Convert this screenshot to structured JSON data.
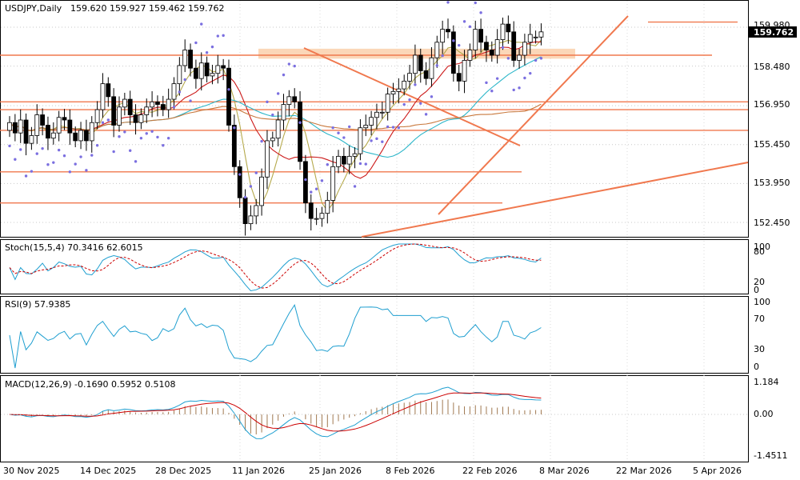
{
  "chart_data": {
    "type": "candlestick",
    "symbol": "USDJPY",
    "timeframe": "Daily",
    "ohlc_header": "159.620 159.927 159.462 159.762",
    "last_price": "159.762",
    "price_axis_labels": [
      "159.980",
      "158.480",
      "156.950",
      "155.450",
      "153.950",
      "152.450"
    ],
    "price_levels": [
      159.98,
      158.48,
      156.95,
      155.45,
      153.95,
      152.45
    ],
    "date_labels": [
      "30 Nov 2025",
      "14 Dec 2025",
      "28 Dec 2025",
      "11 Jan 2026",
      "25 Jan 2026",
      "8 Feb 2026",
      "22 Feb 2026",
      "8 Mar 2026",
      "22 Mar 2026",
      "5 Apr 2026"
    ],
    "stoch": {
      "label": "Stoch(15,5,4) 70.3416 62.6015",
      "levels": [
        "100",
        "80",
        "20",
        "0"
      ]
    },
    "rsi": {
      "label": "RSI(9) 57.9385",
      "levels": [
        "100",
        "70",
        "30",
        "0"
      ]
    },
    "macd": {
      "label": "MACD(12,26,9) -0.1690 0.5952 0.5108",
      "levels": [
        "1.184",
        "0.00",
        "-1.4511"
      ]
    },
    "closes": [
      156.3,
      155.9,
      156.4,
      155.5,
      155.8,
      156.6,
      156.2,
      155.7,
      155.9,
      156.5,
      156.4,
      155.9,
      155.6,
      156.0,
      155.6,
      156.3,
      156.8,
      157.8,
      157.3,
      156.2,
      156.9,
      157.2,
      156.6,
      156.3,
      156.6,
      156.9,
      157.1,
      157.0,
      156.8,
      157.2,
      157.8,
      158.5,
      159.1,
      158.4,
      158.0,
      158.6,
      158.1,
      158.2,
      158.5,
      158.4,
      156.2,
      154.6,
      153.4,
      152.4,
      152.7,
      153.1,
      154.2,
      155.6,
      155.7,
      156.4,
      157.0,
      157.3,
      157.1,
      154.8,
      153.2,
      152.6,
      152.6,
      152.8,
      153.3,
      154.6,
      155.0,
      154.7,
      155.0,
      155.1,
      156.1,
      156.2,
      156.5,
      156.7,
      156.7,
      157.4,
      157.5,
      157.6,
      157.9,
      158.2,
      158.9,
      158.3,
      158.0,
      158.8,
      159.4,
      159.9,
      159.8,
      158.2,
      157.9,
      158.7,
      159.1,
      159.9,
      159.4,
      159.1,
      158.9,
      159.5,
      160.1,
      159.8,
      158.7,
      158.9,
      159.4,
      159.7,
      159.6,
      159.8
    ],
    "opens": [
      156.0,
      156.3,
      155.9,
      156.4,
      155.5,
      155.8,
      156.6,
      156.2,
      155.7,
      155.9,
      156.5,
      156.4,
      155.9,
      155.6,
      156.0,
      155.6,
      156.3,
      156.8,
      157.8,
      157.3,
      156.2,
      156.9,
      157.2,
      156.6,
      156.3,
      156.6,
      156.9,
      157.1,
      157.0,
      156.8,
      157.2,
      157.8,
      158.5,
      159.1,
      158.4,
      158.0,
      158.6,
      158.1,
      158.2,
      158.5,
      158.4,
      156.2,
      154.6,
      153.4,
      152.4,
      152.7,
      153.1,
      154.2,
      155.6,
      155.7,
      156.4,
      157.0,
      157.3,
      157.1,
      154.8,
      153.2,
      152.6,
      152.6,
      152.8,
      153.3,
      154.6,
      155.0,
      154.7,
      155.0,
      155.1,
      156.1,
      156.2,
      156.5,
      156.7,
      156.7,
      157.4,
      157.5,
      157.6,
      157.9,
      158.2,
      158.9,
      158.3,
      158.0,
      158.8,
      159.4,
      159.9,
      159.8,
      158.2,
      157.9,
      158.7,
      159.1,
      159.9,
      159.4,
      159.1,
      158.9,
      159.5,
      160.1,
      159.8,
      158.7,
      158.9,
      159.4,
      159.6,
      159.6
    ],
    "support_resistance": [
      159.98,
      159.1,
      158.98,
      157.1,
      156.8,
      156.0,
      154.4,
      153.2
    ],
    "colors": {
      "candle_up": "#ffffff",
      "candle_down": "#000000",
      "ma_fast": "#b5a94c",
      "ma_mid": "#cc1a1a",
      "ma_slow": "#2bb6c9",
      "ma_long": "#c8783c",
      "levels": "#f0784e",
      "zone": "#fbd7b8",
      "psar": "#7b6fe0",
      "signal_red": "#cc0000",
      "main_blue": "#1f9fd0",
      "hist": "#a07850"
    }
  }
}
